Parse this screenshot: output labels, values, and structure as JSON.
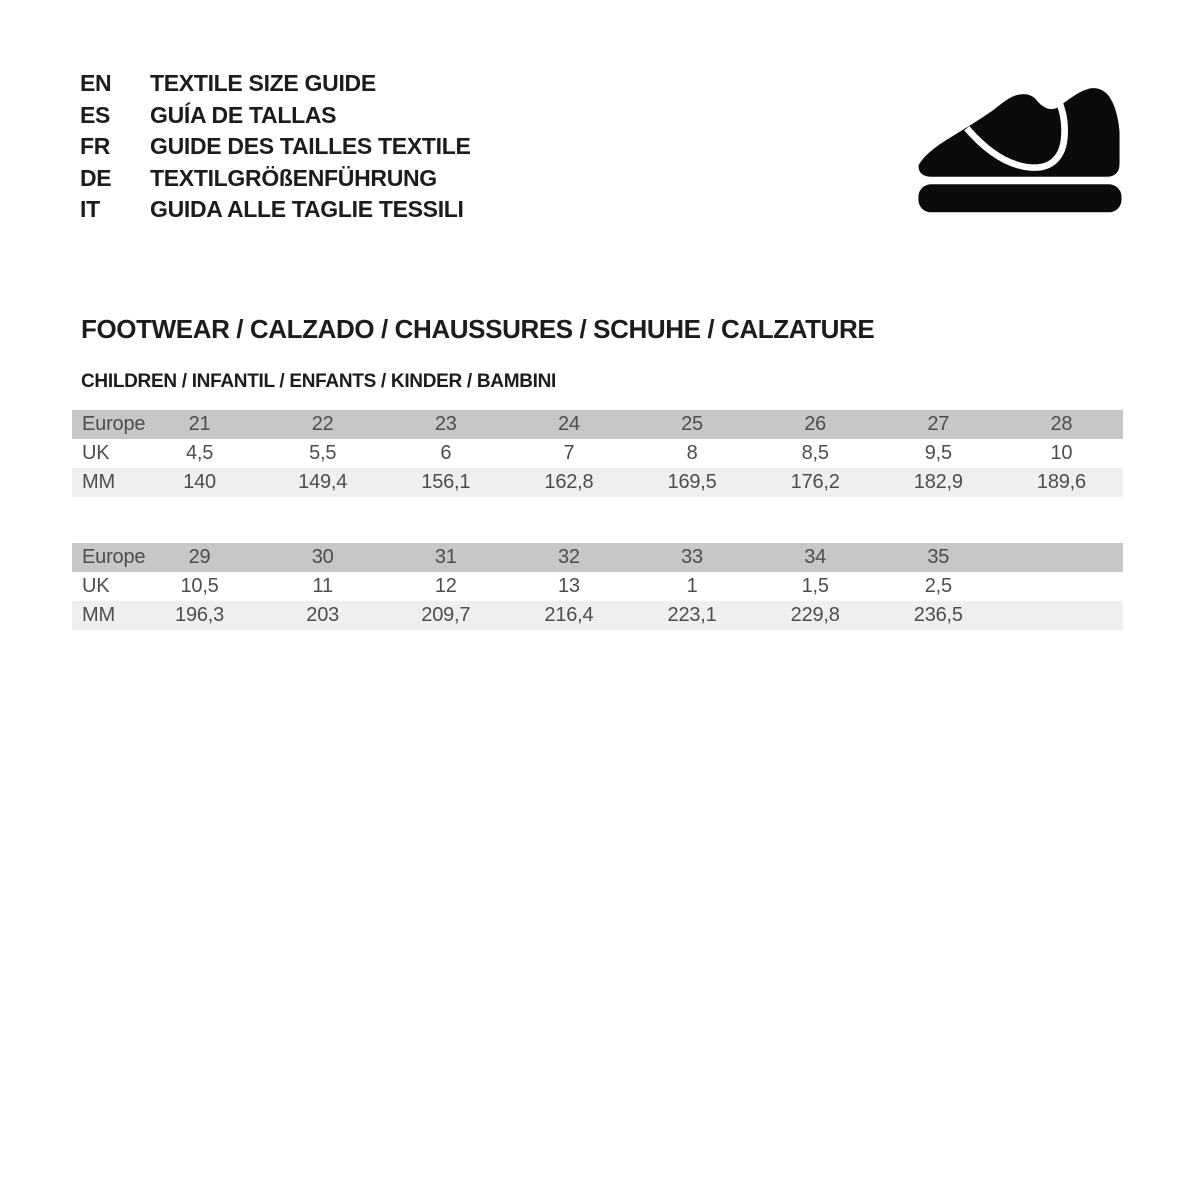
{
  "languages": [
    {
      "code": "EN",
      "title": "TEXTILE SIZE GUIDE"
    },
    {
      "code": "ES",
      "title": "GUÍA DE TALLAS"
    },
    {
      "code": "FR",
      "title": "GUIDE DES TAILLES TEXTILE"
    },
    {
      "code": "DE",
      "title": "TEXTILGRÖßENFÜHRUNG"
    },
    {
      "code": "IT",
      "title": "GUIDA ALLE TAGLIE TESSILI"
    }
  ],
  "icon": "children-shoe-icon",
  "section_title": "FOOTWEAR / CALZADO / CHAUSSURES / SCHUHE / CALZATURE",
  "subsection_title": "CHILDREN / INFANTIL / ENFANTS / KINDER / BAMBINI",
  "colors": {
    "header_row_bg": "#c7c7c7",
    "alt_row_bg": "#efefef",
    "table_text": "#4d4d4d",
    "heading_text": "#1c1c1c",
    "icon_color": "#0b0b0b"
  },
  "tables": [
    {
      "name": "children-sizes-21-28",
      "rows": [
        {
          "label": "Europe",
          "values": [
            "21",
            "22",
            "23",
            "24",
            "25",
            "26",
            "27",
            "28"
          ]
        },
        {
          "label": "UK",
          "values": [
            "4,5",
            "5,5",
            "6",
            "7",
            "8",
            "8,5",
            "9,5",
            "10"
          ]
        },
        {
          "label": "MM",
          "values": [
            "140",
            "149,4",
            "156,1",
            "162,8",
            "169,5",
            "176,2",
            "182,9",
            "189,6"
          ]
        }
      ]
    },
    {
      "name": "children-sizes-29-35",
      "rows": [
        {
          "label": "Europe",
          "values": [
            "29",
            "30",
            "31",
            "32",
            "33",
            "34",
            "35",
            ""
          ]
        },
        {
          "label": "UK",
          "values": [
            "10,5",
            "11",
            "12",
            "13",
            "1",
            "1,5",
            "2,5",
            ""
          ]
        },
        {
          "label": "MM",
          "values": [
            "196,3",
            "203",
            "209,7",
            "216,4",
            "223,1",
            "229,8",
            "236,5",
            ""
          ]
        }
      ]
    }
  ]
}
